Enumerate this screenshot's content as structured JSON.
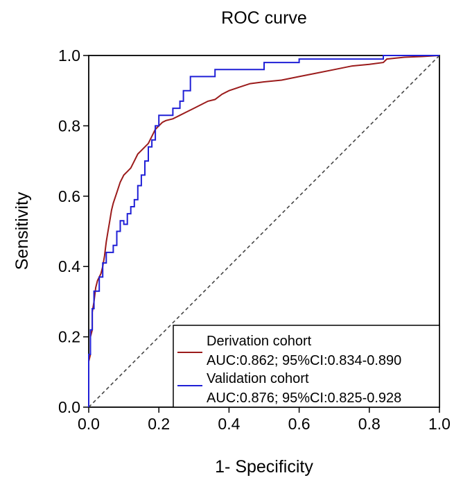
{
  "chart_data": {
    "type": "line",
    "title": "ROC curve",
    "xlabel": "1- Specificity",
    "ylabel": "Sensitivity",
    "xlim": [
      0,
      1
    ],
    "ylim": [
      0,
      1
    ],
    "xticks": [
      "0.0",
      "0.2",
      "0.4",
      "0.6",
      "0.8",
      "1.0"
    ],
    "yticks": [
      "0.0",
      "0.2",
      "0.4",
      "0.6",
      "0.8",
      "1.0"
    ],
    "legend_position": "bottom-right",
    "series": [
      {
        "name": "Derivation cohort",
        "auc_label": "AUC:0.862; 95%CI:0.834-0.890",
        "color": "#9b1b1b",
        "x": [
          0,
          0,
          0.005,
          0.005,
          0.01,
          0.01,
          0.015,
          0.02,
          0.025,
          0.03,
          0.035,
          0.04,
          0.045,
          0.05,
          0.055,
          0.06,
          0.065,
          0.07,
          0.08,
          0.09,
          0.1,
          0.11,
          0.12,
          0.13,
          0.14,
          0.15,
          0.16,
          0.17,
          0.18,
          0.19,
          0.2,
          0.21,
          0.22,
          0.24,
          0.26,
          0.28,
          0.3,
          0.32,
          0.34,
          0.36,
          0.38,
          0.4,
          0.43,
          0.46,
          0.5,
          0.55,
          0.6,
          0.65,
          0.7,
          0.75,
          0.8,
          0.84,
          0.85,
          0.9,
          0.95,
          1.0
        ],
        "y": [
          0,
          0.13,
          0.15,
          0.2,
          0.22,
          0.27,
          0.3,
          0.34,
          0.36,
          0.37,
          0.38,
          0.4,
          0.43,
          0.47,
          0.5,
          0.53,
          0.56,
          0.58,
          0.61,
          0.64,
          0.66,
          0.67,
          0.68,
          0.7,
          0.72,
          0.73,
          0.74,
          0.75,
          0.77,
          0.79,
          0.8,
          0.81,
          0.815,
          0.82,
          0.83,
          0.84,
          0.85,
          0.86,
          0.87,
          0.875,
          0.89,
          0.9,
          0.91,
          0.92,
          0.925,
          0.93,
          0.94,
          0.95,
          0.96,
          0.97,
          0.975,
          0.98,
          0.99,
          0.995,
          0.997,
          1.0
        ]
      },
      {
        "name": "Validation cohort",
        "auc_label": "AUC:0.876; 95%CI:0.825-0.928",
        "color": "#1f1fd6",
        "steps": [
          [
            0,
            0
          ],
          [
            0,
            0.15
          ],
          [
            0.005,
            0.15
          ],
          [
            0.005,
            0.22
          ],
          [
            0.01,
            0.22
          ],
          [
            0.01,
            0.28
          ],
          [
            0.015,
            0.28
          ],
          [
            0.015,
            0.33
          ],
          [
            0.03,
            0.33
          ],
          [
            0.03,
            0.37
          ],
          [
            0.04,
            0.37
          ],
          [
            0.04,
            0.41
          ],
          [
            0.05,
            0.41
          ],
          [
            0.05,
            0.44
          ],
          [
            0.07,
            0.44
          ],
          [
            0.07,
            0.46
          ],
          [
            0.08,
            0.46
          ],
          [
            0.08,
            0.5
          ],
          [
            0.09,
            0.5
          ],
          [
            0.09,
            0.53
          ],
          [
            0.1,
            0.53
          ],
          [
            0.1,
            0.52
          ],
          [
            0.11,
            0.52
          ],
          [
            0.11,
            0.55
          ],
          [
            0.12,
            0.55
          ],
          [
            0.12,
            0.57
          ],
          [
            0.13,
            0.57
          ],
          [
            0.13,
            0.59
          ],
          [
            0.14,
            0.59
          ],
          [
            0.14,
            0.63
          ],
          [
            0.15,
            0.63
          ],
          [
            0.15,
            0.66
          ],
          [
            0.16,
            0.66
          ],
          [
            0.16,
            0.7
          ],
          [
            0.17,
            0.7
          ],
          [
            0.17,
            0.74
          ],
          [
            0.18,
            0.74
          ],
          [
            0.18,
            0.76
          ],
          [
            0.19,
            0.76
          ],
          [
            0.19,
            0.8
          ],
          [
            0.2,
            0.8
          ],
          [
            0.2,
            0.83
          ],
          [
            0.24,
            0.83
          ],
          [
            0.24,
            0.85
          ],
          [
            0.26,
            0.85
          ],
          [
            0.26,
            0.87
          ],
          [
            0.27,
            0.87
          ],
          [
            0.27,
            0.9
          ],
          [
            0.29,
            0.9
          ],
          [
            0.29,
            0.94
          ],
          [
            0.36,
            0.94
          ],
          [
            0.36,
            0.96
          ],
          [
            0.5,
            0.96
          ],
          [
            0.5,
            0.98
          ],
          [
            0.6,
            0.98
          ],
          [
            0.6,
            0.99
          ],
          [
            0.84,
            0.99
          ],
          [
            0.84,
            1.0
          ],
          [
            1.0,
            1.0
          ]
        ]
      },
      {
        "name": "",
        "reference_line": true,
        "color": "#444444",
        "x": [
          0,
          1
        ],
        "y": [
          0,
          1
        ]
      }
    ]
  }
}
